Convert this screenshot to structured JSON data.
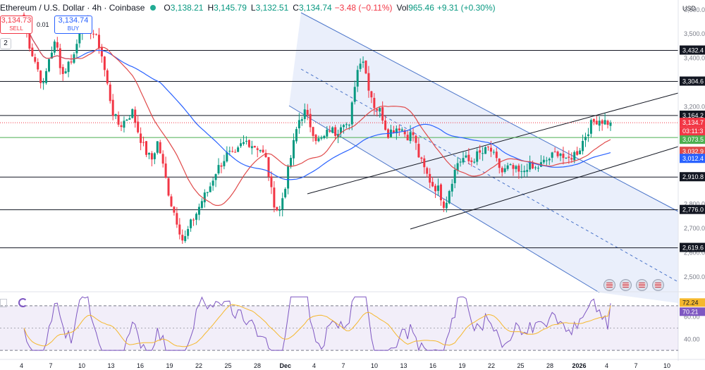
{
  "header": {
    "title": "Ethereum / U.S. Dollar · 4h · Coinbase",
    "open_label": "O",
    "open": "3,138.21",
    "high_label": "H",
    "high": "3,145.79",
    "low_label": "L",
    "low": "3,132.51",
    "close_label": "C",
    "close": "3,134.74",
    "change": "−3.48 (−0.11%)",
    "vol_label": "Vol",
    "vol": "965.46",
    "vol_change": "+9.31 (+0.30%)"
  },
  "trade": {
    "sell_price": "3,134.73",
    "sell_label": "SELL",
    "spread": "0.01",
    "buy_price": "3,134.74",
    "buy_label": "BUY",
    "collapse_count": "2"
  },
  "currency": "USD",
  "price_axis": {
    "ticks": [
      "3,600.00",
      "3,500.00",
      "3,400.00",
      "3,200.00",
      "2,800.00",
      "2,700.00",
      "2,600.00",
      "2,500.00"
    ],
    "rsi_ticks": [
      "60.00",
      "40.00"
    ]
  },
  "levels": [
    "3,432.4",
    "3,304.6",
    "3,164.2",
    "2,910.8",
    "2,776.0",
    "2,619.6"
  ],
  "price_tags": {
    "last": "3,134.7",
    "countdown": "03:11:3",
    "green": "3,073.5",
    "red": "3,032.9",
    "blue": "3,012.4"
  },
  "rsi": {
    "value": "72.24",
    "ma": "70.21"
  },
  "time_axis": [
    "4",
    "7",
    "10",
    "13",
    "16",
    "19",
    "22",
    "25",
    "28",
    "Dec",
    "4",
    "7",
    "10",
    "13",
    "16",
    "19",
    "22",
    "25",
    "28",
    "2026",
    "4",
    "7",
    "10"
  ],
  "icons": [
    "indicator-arrow-icon",
    "flag-usa-icon",
    "flag-usa-icon",
    "flag-usa-icon"
  ],
  "colors": {
    "up": "#089981",
    "down": "#f23645",
    "ma_fast": "#e04a4a",
    "ma_slow": "#2962ff",
    "channel_fill": "#e8edfb",
    "rsi": "#7e57c2",
    "rsi_ma": "#f5b82e"
  },
  "chart_data": {
    "type": "candlestick",
    "symbol": "Ethereum / U.S. Dollar",
    "interval": "4h",
    "exchange": "Coinbase",
    "ylim": [
      2450,
      3640
    ],
    "x_labels": [
      "4",
      "7",
      "10",
      "13",
      "16",
      "19",
      "22",
      "25",
      "28",
      "Dec",
      "4",
      "7",
      "10",
      "13",
      "16",
      "19",
      "22",
      "25",
      "28",
      "2026",
      "4",
      "7",
      "10"
    ],
    "close_path": [
      3560,
      3440,
      3370,
      3280,
      3410,
      3470,
      3330,
      3380,
      3420,
      3560,
      3530,
      3500,
      3440,
      3300,
      3170,
      3120,
      3150,
      3180,
      3090,
      3020,
      2980,
      3060,
      2930,
      2810,
      2730,
      2640,
      2710,
      2760,
      2820,
      2860,
      2930,
      2970,
      3010,
      2990,
      3040,
      3060,
      3040,
      3030,
      2980,
      2820,
      2760,
      2880,
      3010,
      3140,
      3180,
      3120,
      3060,
      3070,
      3110,
      3090,
      3150,
      3110,
      3320,
      3420,
      3290,
      3200,
      3180,
      3090,
      3110,
      3120,
      3080,
      3090,
      2990,
      2930,
      2880,
      2860,
      2790,
      2890,
      2970,
      2990,
      2970,
      3000,
      3010,
      3030,
      2980,
      2930,
      2950,
      2940,
      2920,
      2960,
      2940,
      2960,
      2980,
      3000,
      3020,
      2970,
      3000,
      3020,
      3080,
      3130,
      3150,
      3140,
      3134.74
    ],
    "horizontal_levels": [
      3432.4,
      3304.6,
      3164.2,
      2910.8,
      2776.0,
      2619.6
    ],
    "last_price": 3134.74,
    "ma_fast_last": 3032.9,
    "ma_slow_last": 3012.4,
    "rsi_last": 72.24,
    "rsi_ma_last": 70.21,
    "rsi_levels": [
      70,
      30
    ]
  }
}
